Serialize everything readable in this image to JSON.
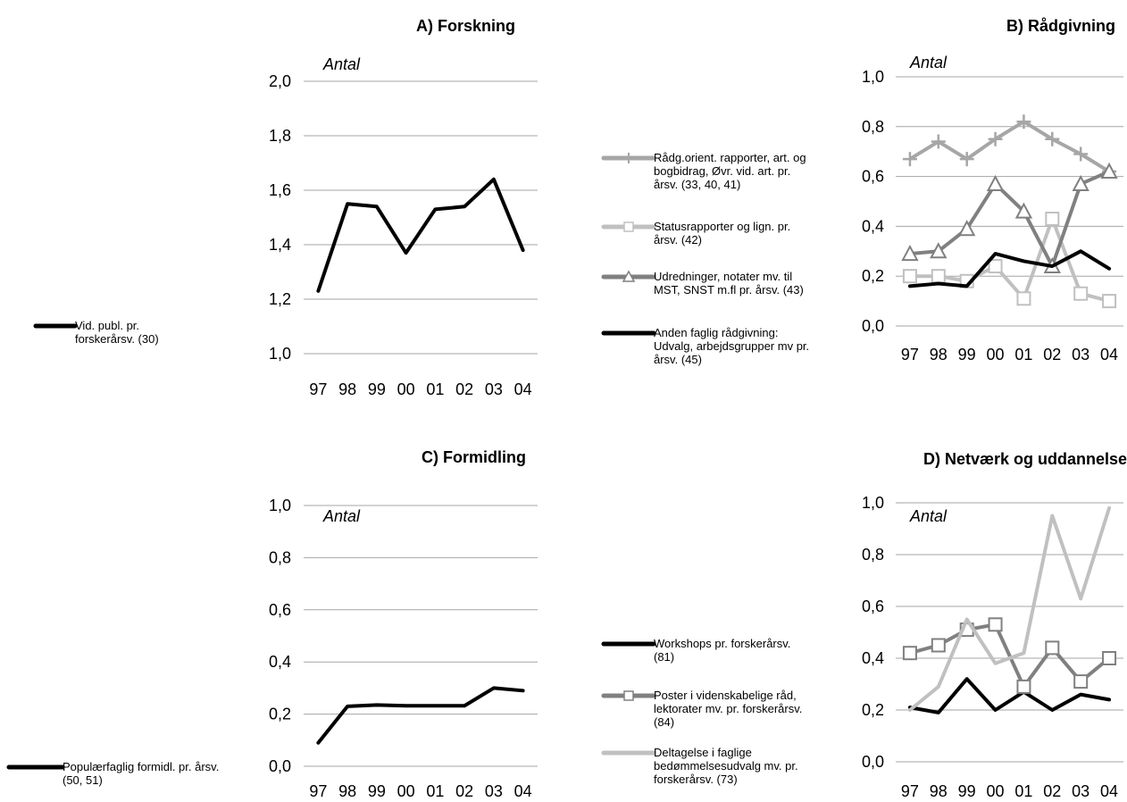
{
  "colors": {
    "black": "#000000",
    "mid_gray": "#808080",
    "light_gray": "#a6a6a6",
    "pale_gray": "#c0c0c0",
    "grid": "#a6a6a6"
  },
  "chart_data": [
    {
      "type": "line",
      "title": "A) Forskning",
      "unit_label": "Antal",
      "categories": [
        "97",
        "98",
        "99",
        "00",
        "01",
        "02",
        "03",
        "04"
      ],
      "ylim": [
        1.0,
        2.0
      ],
      "yticks": [
        "1,0",
        "1,2",
        "1,4",
        "1,6",
        "1,8",
        "2,0"
      ],
      "grid": true,
      "legend_position": "left",
      "series": [
        {
          "name": "Vid. publ. pr. forskerårsv. (30)",
          "legend_lines": [
            "Vid. publ. pr.",
            "forskerårsv. (30)"
          ],
          "color": "#000000",
          "marker": "none",
          "values": [
            1.23,
            1.55,
            1.54,
            1.37,
            1.53,
            1.54,
            1.64,
            1.38
          ]
        }
      ]
    },
    {
      "type": "line",
      "title": "B) Rådgivning",
      "unit_label": "Antal",
      "categories": [
        "97",
        "98",
        "99",
        "00",
        "01",
        "02",
        "03",
        "04"
      ],
      "ylim": [
        0.0,
        1.0
      ],
      "yticks": [
        "0,0",
        "0,2",
        "0,4",
        "0,6",
        "0,8",
        "1,0"
      ],
      "grid": true,
      "legend_position": "left",
      "series": [
        {
          "name": "Rådg.orient. rapporter, art. og bogbidrag, Øvr. vid. art. pr. årsv. (33, 40, 41)",
          "legend_lines": [
            "Rådg.orient. rapporter, art. og",
            "bogbidrag, Øvr. vid. art. pr.",
            "årsv. (33, 40, 41)"
          ],
          "color": "#a6a6a6",
          "marker": "plus",
          "values": [
            0.67,
            0.74,
            0.67,
            0.75,
            0.82,
            0.75,
            0.69,
            0.62
          ]
        },
        {
          "name": "Statusrapporter og lign. pr. årsv. (42)",
          "legend_lines": [
            "Statusrapporter og lign. pr.",
            "årsv. (42)"
          ],
          "color": "#c0c0c0",
          "marker": "square",
          "values": [
            0.2,
            0.2,
            0.18,
            0.24,
            0.11,
            0.43,
            0.13,
            0.1
          ]
        },
        {
          "name": "Udredninger, notater mv. til MST, SNST m.fl pr. årsv. (43)",
          "legend_lines": [
            "Udredninger, notater mv. til",
            "MST, SNST m.fl pr. årsv. (43)"
          ],
          "color": "#808080",
          "marker": "triangle",
          "values": [
            0.29,
            0.3,
            0.39,
            0.57,
            0.46,
            0.24,
            0.57,
            0.62
          ]
        },
        {
          "name": "Anden faglig rådgivning: Udvalg, arbejdsgrupper mv pr. årsv. (45)",
          "legend_lines": [
            "Anden faglig rådgivning:",
            "Udvalg, arbejdsgrupper mv pr.",
            "årsv. (45)"
          ],
          "color": "#000000",
          "marker": "none",
          "values": [
            0.16,
            0.17,
            0.16,
            0.29,
            0.26,
            0.24,
            0.3,
            0.23
          ]
        }
      ]
    },
    {
      "type": "line",
      "title": "C) Formidling",
      "unit_label": "Antal",
      "categories": [
        "97",
        "98",
        "99",
        "00",
        "01",
        "02",
        "03",
        "04"
      ],
      "ylim": [
        0.0,
        1.0
      ],
      "yticks": [
        "0,0",
        "0,2",
        "0,4",
        "0,6",
        "0,8",
        "1,0"
      ],
      "grid": true,
      "legend_position": "left",
      "series": [
        {
          "name": "Populærfaglig formidl. pr. årsv. (50, 51)",
          "legend_lines": [
            "Populærfaglig formidl. pr. årsv.",
            "(50, 51)"
          ],
          "color": "#000000",
          "marker": "none",
          "values": [
            0.09,
            0.23,
            0.235,
            0.232,
            0.232,
            0.232,
            0.3,
            0.29
          ]
        }
      ]
    },
    {
      "type": "line",
      "title": "D) Netværk og uddannelse",
      "unit_label": "Antal",
      "categories": [
        "97",
        "98",
        "99",
        "00",
        "01",
        "02",
        "03",
        "04"
      ],
      "ylim": [
        0.0,
        1.0
      ],
      "yticks": [
        "0,0",
        "0,2",
        "0,4",
        "0,6",
        "0,8",
        "1,0"
      ],
      "grid": true,
      "legend_position": "left",
      "series": [
        {
          "name": "Workshops pr. forskerårsv. (81)",
          "legend_lines": [
            "Workshops pr. forskerårsv.",
            "(81)"
          ],
          "color": "#000000",
          "marker": "none",
          "values": [
            0.21,
            0.19,
            0.32,
            0.2,
            0.27,
            0.2,
            0.26,
            0.24
          ]
        },
        {
          "name": "Poster i videnskabelige råd, lektorater mv. pr. forskerårsv. (84)",
          "legend_lines": [
            "Poster i videnskabelige råd,",
            "lektorater mv. pr. forskerårsv.",
            "(84)"
          ],
          "color": "#808080",
          "marker": "square",
          "values": [
            0.42,
            0.45,
            0.51,
            0.53,
            0.29,
            0.44,
            0.31,
            0.4
          ]
        },
        {
          "name": "Deltagelse i faglige bedømmelsesudvalg mv. pr. forskerårsv. (73)",
          "legend_lines": [
            "Deltagelse i faglige",
            "bedømmelsesudvalg mv. pr.",
            "forskerårsv. (73)"
          ],
          "color": "#c0c0c0",
          "marker": "none",
          "values": [
            0.2,
            0.29,
            0.55,
            0.38,
            0.42,
            0.95,
            0.63,
            0.98
          ]
        }
      ]
    }
  ]
}
